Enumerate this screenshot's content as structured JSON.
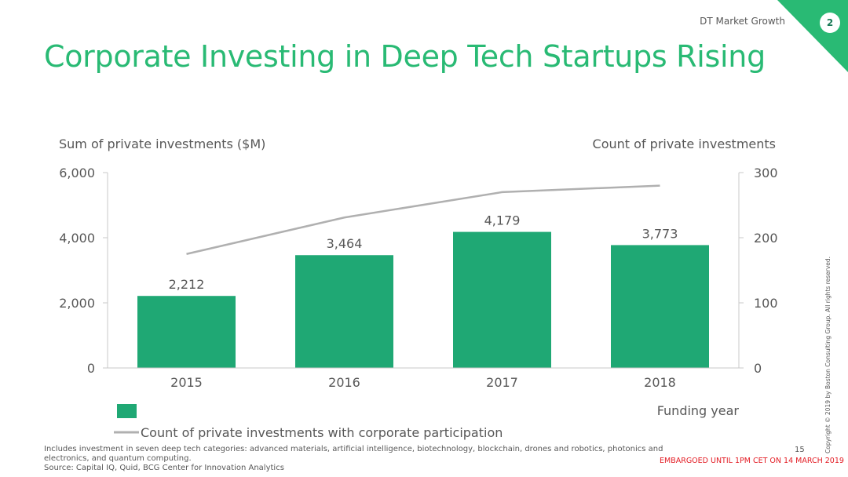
{
  "header": {
    "title": "Corporate Investing in Deep Tech Startups Rising",
    "section": "DT Market Growth",
    "page_badge": "2"
  },
  "colors": {
    "accent": "#29ba74",
    "bar": "#1fa874",
    "line": "#b0b0b0",
    "corner": "#29ba74",
    "embargo": "#e31b23"
  },
  "chart_data": {
    "type": "bar",
    "title": "",
    "categories": [
      "2015",
      "2016",
      "2017",
      "2018"
    ],
    "xlabel": "Funding year",
    "ylabel": "Sum of private investments ($M)",
    "y2label": "Count of private investments",
    "ylim": [
      0,
      6000
    ],
    "y2lim": [
      0,
      300
    ],
    "yticks": [
      "0",
      "2,000",
      "4,000",
      "6,000"
    ],
    "y2ticks": [
      "0",
      "100",
      "200",
      "300"
    ],
    "yticks_values": [
      0,
      2000,
      4000,
      6000
    ],
    "y2ticks_values": [
      0,
      100,
      200,
      300
    ],
    "series": [
      {
        "name": "",
        "type": "bar",
        "axis": "left",
        "values": [
          2212,
          3464,
          4179,
          3773
        ],
        "labels": [
          "2,212",
          "3,464",
          "4,179",
          "3,773"
        ]
      },
      {
        "name": "Count of private investments with corporate participation",
        "type": "line",
        "axis": "right",
        "values": [
          175,
          231,
          270,
          280
        ]
      }
    ],
    "grid": false,
    "legend": "bottom-left"
  },
  "footer": {
    "note": "Includes investment in seven deep tech categories:  advanced materials, artificial intelligence, biotechnology, blockchain, drones and robotics, photonics and electronics, and quantum computing.",
    "source": "Source: Capital IQ, Quid, BCG Center for Innovation Analytics",
    "slide_number": "15",
    "embargo": "EMBARGOED UNTIL 1PM CET ON 14 MARCH 2019",
    "copyright": "Copyright © 2019 by Boston Consulting Group. All rights reserved."
  }
}
